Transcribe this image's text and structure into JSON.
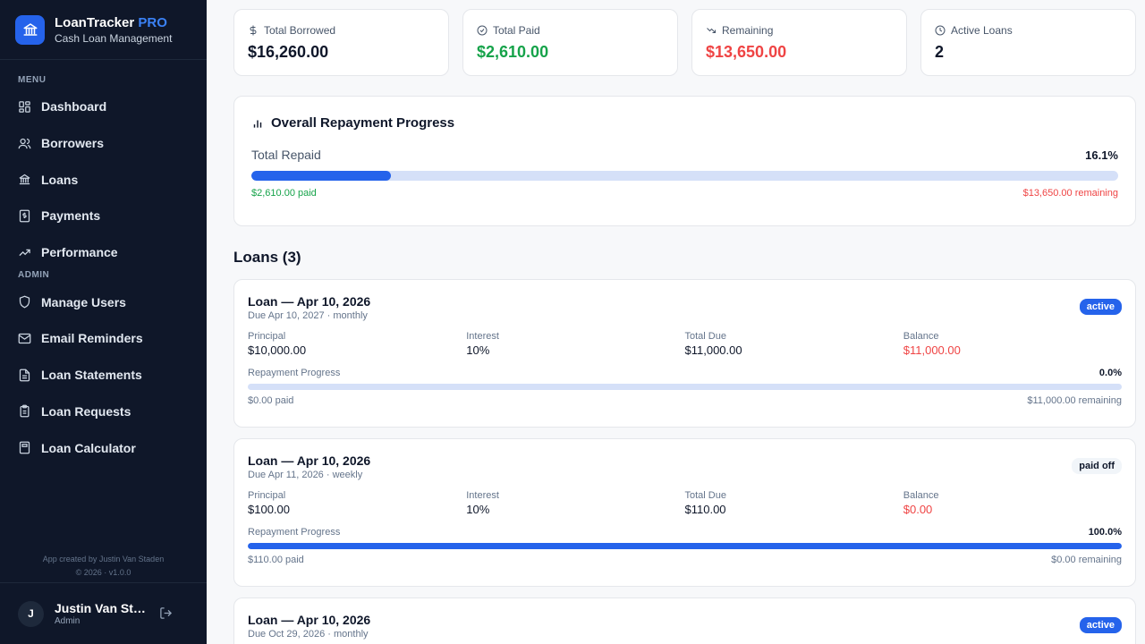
{
  "app": {
    "name": "LoanTracker",
    "badge": "PRO",
    "subtitle": "Cash Loan Management",
    "logo_icon": "bank-icon",
    "accent": "#2563eb"
  },
  "sidebar": {
    "menu_label": "MENU",
    "menu_items": [
      {
        "label": "Dashboard",
        "icon": "grid-icon"
      },
      {
        "label": "Borrowers",
        "icon": "users-icon"
      },
      {
        "label": "Loans",
        "icon": "bank-icon"
      },
      {
        "label": "Payments",
        "icon": "receipt-icon"
      },
      {
        "label": "Performance",
        "icon": "trending-up-icon"
      }
    ],
    "admin_label": "ADMIN",
    "admin_items": [
      {
        "label": "Manage Users",
        "icon": "shield-icon"
      },
      {
        "label": "Email Reminders",
        "icon": "mail-icon"
      },
      {
        "label": "Loan Statements",
        "icon": "document-icon"
      },
      {
        "label": "Loan Requests",
        "icon": "clipboard-icon"
      },
      {
        "label": "Loan Calculator",
        "icon": "calculator-icon"
      }
    ],
    "credit_line1": "App created by Justin Van Staden",
    "credit_line2": "© 2026 · v1.0.0",
    "user": {
      "initial": "J",
      "name": "Justin Van Staden",
      "role": "Admin",
      "logout_icon": "logout-icon"
    }
  },
  "stats": [
    {
      "label": "Total Borrowed",
      "value": "$16,260.00",
      "icon": "dollar-icon",
      "color": "#0f172a"
    },
    {
      "label": "Total Paid",
      "value": "$2,610.00",
      "icon": "check-circle-icon",
      "color": "#16a34a"
    },
    {
      "label": "Remaining",
      "value": "$13,650.00",
      "icon": "trending-down-icon",
      "color": "#ef4444"
    },
    {
      "label": "Active Loans",
      "value": "2",
      "icon": "clock-icon",
      "color": "#0f172a"
    }
  ],
  "overall": {
    "title": "Overall Repayment Progress",
    "label": "Total Repaid",
    "percent_text": "16.1%",
    "percent": 16.1,
    "paid_text": "$2,610.00 paid",
    "remaining_text": "$13,650.00 remaining"
  },
  "loans_heading": "Loans (3)",
  "loan_labels": {
    "principal": "Principal",
    "interest": "Interest",
    "total_due": "Total Due",
    "balance": "Balance",
    "progress": "Repayment Progress"
  },
  "loans": [
    {
      "title": "Loan — Apr 10, 2026",
      "subtitle": "Due Apr 10, 2027 · monthly",
      "status": "active",
      "principal": "$10,000.00",
      "interest": "10%",
      "total_due": "$11,000.00",
      "balance": "$11,000.00",
      "percent_text": "0.0%",
      "percent": 0,
      "paid_text": "$0.00 paid",
      "remaining_text": "$11,000.00 remaining"
    },
    {
      "title": "Loan — Apr 10, 2026",
      "subtitle": "Due Apr 11, 2026 · weekly",
      "status": "paid off",
      "principal": "$100.00",
      "interest": "10%",
      "total_due": "$110.00",
      "balance": "$0.00",
      "percent_text": "100.0%",
      "percent": 100,
      "paid_text": "$110.00 paid",
      "remaining_text": "$0.00 remaining"
    },
    {
      "title": "Loan — Apr 10, 2026",
      "subtitle": "Due Oct 29, 2026 · monthly",
      "status": "active"
    }
  ]
}
